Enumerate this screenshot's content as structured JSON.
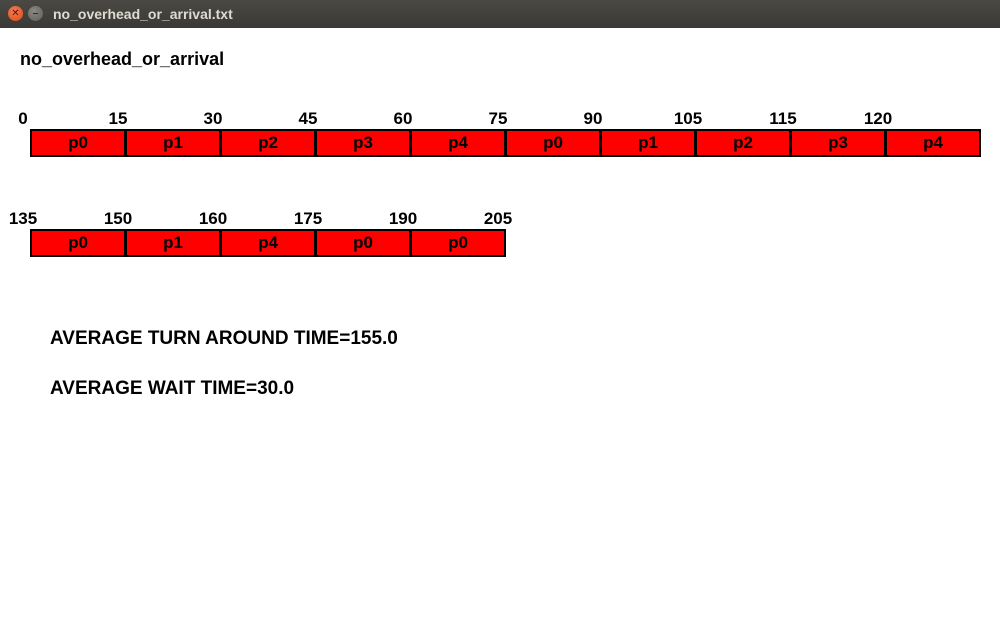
{
  "window": {
    "title": "no_overhead_or_arrival.txt",
    "close_icon": "close-icon",
    "minimize_icon": "minimize-icon"
  },
  "heading": "no_overhead_or_arrival",
  "colors": {
    "bar_fill": "#ff0000",
    "bar_border": "#000000"
  },
  "gantt_rows": [
    {
      "ticks": [
        "0",
        "15",
        "30",
        "45",
        "60",
        "75",
        "90",
        "105",
        "115",
        "120"
      ],
      "processes": [
        "p0",
        "p1",
        "p2",
        "p3",
        "p4",
        "p0",
        "p1",
        "p2",
        "p3",
        "p4"
      ]
    },
    {
      "ticks": [
        "135",
        "150",
        "160",
        "175",
        "190",
        "205"
      ],
      "processes": [
        "p0",
        "p1",
        "p4",
        "p0",
        "p0"
      ]
    }
  ],
  "stats": {
    "turnaround": "AVERAGE TURN AROUND TIME=155.0",
    "wait": "AVERAGE WAIT TIME=30.0"
  }
}
